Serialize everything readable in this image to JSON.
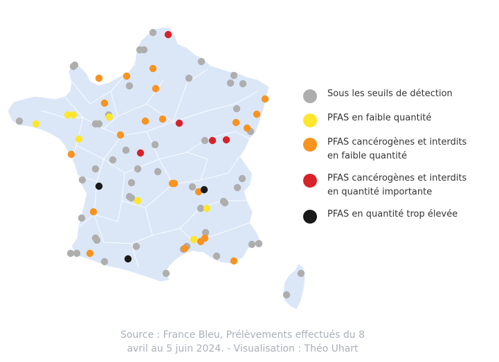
{
  "colors": {
    "land": "#dbe7f7",
    "borders": "#ffffff",
    "grey": "#aeaeae",
    "yellow": "#fde62c",
    "orange": "#f8931f",
    "red": "#d8222a",
    "black": "#1a1a1a"
  },
  "legend": [
    {
      "category": "grey",
      "label": "Sous les seuils de détection"
    },
    {
      "category": "yellow",
      "label": "PFAS en faible quantité"
    },
    {
      "category": "orange",
      "label": "PFAS cancérogènes et interdits en faible quantité"
    },
    {
      "category": "red",
      "label": "PFAS cancérogènes et interdits en quantité importante"
    },
    {
      "category": "black",
      "label": "PFAS en quantité trop élevée"
    }
  ],
  "source": {
    "line1": "Source : France Bleu, Prélèvements effectués du 8",
    "line2": "avril au 5 juin 2024. - Visualisation : Théo Uhart"
  }
}
